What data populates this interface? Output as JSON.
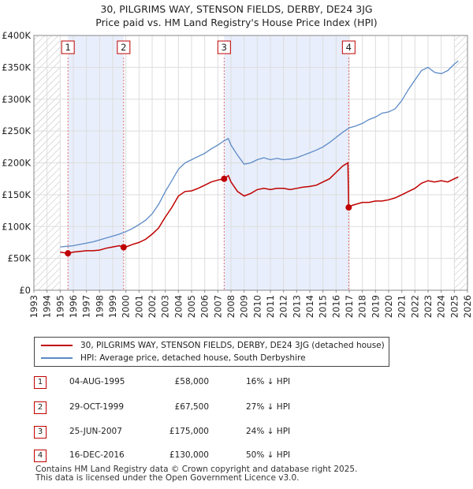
{
  "title_line1": "30, PILGRIMS WAY, STENSON FIELDS, DERBY, DE24 3JG",
  "title_line2": "Price paid vs. HM Land Registry's House Price Index (HPI)",
  "legend": {
    "property_label": "30, PILGRIMS WAY, STENSON FIELDS, DERBY, DE24 3JG (detached house)",
    "hpi_label": "HPI: Average price, detached house, South Derbyshire"
  },
  "colors": {
    "property": "#c00000",
    "hpi": "#5b8ac6",
    "band": "#e8eefb",
    "hatch": "#bbbbbb",
    "marker_line": "#e07070"
  },
  "transactions": [
    {
      "num": "1",
      "date": "04-AUG-1995",
      "price": "£58,000",
      "diff": "16% ↓ HPI"
    },
    {
      "num": "2",
      "date": "29-OCT-1999",
      "price": "£67,500",
      "diff": "27% ↓ HPI"
    },
    {
      "num": "3",
      "date": "25-JUN-2007",
      "price": "£175,000",
      "diff": "24% ↓ HPI"
    },
    {
      "num": "4",
      "date": "16-DEC-2016",
      "price": "£130,000",
      "diff": "50% ↓ HPI"
    }
  ],
  "footer": {
    "line1": "Contains HM Land Registry data © Crown copyright and database right 2025.",
    "line2": "This data is licensed under the Open Government Licence v3.0."
  },
  "chart_data": {
    "type": "line",
    "title": "Price paid vs. HM Land Registry's House Price Index (HPI)",
    "xlabel": "",
    "ylabel": "",
    "xlim": [
      1993,
      2026
    ],
    "ylim": [
      0,
      400000
    ],
    "grid": true,
    "legend_position": "below",
    "y_ticks": [
      0,
      50000,
      100000,
      150000,
      200000,
      250000,
      300000,
      350000,
      400000
    ],
    "y_tick_labels": [
      "£0",
      "£50K",
      "£100K",
      "£150K",
      "£200K",
      "£250K",
      "£300K",
      "£350K",
      "£400K"
    ],
    "x_ticks": [
      "1993",
      "1994",
      "1995",
      "1996",
      "1997",
      "1998",
      "1999",
      "2000",
      "2001",
      "2002",
      "2003",
      "2004",
      "2005",
      "2006",
      "2007",
      "2008",
      "2009",
      "2010",
      "2011",
      "2012",
      "2013",
      "2014",
      "2015",
      "2016",
      "2017",
      "2018",
      "2019",
      "2020",
      "2021",
      "2022",
      "2023",
      "2024",
      "2025",
      "2026"
    ],
    "hatch_before": 1995.0,
    "hatch_after": 2025.0,
    "sale_markers": [
      {
        "label": "1",
        "x": 1995.59,
        "y": 58000
      },
      {
        "label": "2",
        "x": 1999.83,
        "y": 67500
      },
      {
        "label": "3",
        "x": 2007.48,
        "y": 175000
      },
      {
        "label": "4",
        "x": 2016.96,
        "y": 130000
      }
    ],
    "series": [
      {
        "name": "30, PILGRIMS WAY, STENSON FIELDS, DERBY, DE24 3JG (detached house)",
        "x": [
          1995.0,
          1995.59,
          1996.0,
          1996.5,
          1997.0,
          1997.5,
          1998.0,
          1998.5,
          1999.0,
          1999.5,
          1999.83,
          2000.0,
          2000.5,
          2001.0,
          2001.5,
          2002.0,
          2002.5,
          2003.0,
          2003.5,
          2004.0,
          2004.5,
          2005.0,
          2005.5,
          2006.0,
          2006.5,
          2007.0,
          2007.48,
          2007.8,
          2008.0,
          2008.5,
          2009.0,
          2009.5,
          2010.0,
          2010.5,
          2011.0,
          2011.5,
          2012.0,
          2012.5,
          2013.0,
          2013.5,
          2014.0,
          2014.5,
          2015.0,
          2015.5,
          2016.0,
          2016.5,
          2016.9,
          2016.96,
          2017.2,
          2017.5,
          2018.0,
          2018.5,
          2019.0,
          2019.5,
          2020.0,
          2020.5,
          2021.0,
          2021.5,
          2022.0,
          2022.5,
          2023.0,
          2023.5,
          2024.0,
          2024.5,
          2025.0,
          2025.3
        ],
        "values": [
          60000,
          58000,
          60000,
          61000,
          62000,
          62000,
          63000,
          66000,
          68000,
          70000,
          67500,
          68000,
          72000,
          75000,
          80000,
          88000,
          98000,
          115000,
          130000,
          148000,
          155000,
          156000,
          160000,
          165000,
          170000,
          173000,
          175000,
          180000,
          170000,
          155000,
          148000,
          152000,
          158000,
          160000,
          158000,
          160000,
          160000,
          158000,
          160000,
          162000,
          163000,
          165000,
          170000,
          175000,
          185000,
          195000,
          200000,
          130000,
          133000,
          135000,
          138000,
          138000,
          140000,
          140000,
          142000,
          145000,
          150000,
          155000,
          160000,
          168000,
          172000,
          170000,
          172000,
          170000,
          175000,
          178000
        ]
      },
      {
        "name": "HPI: Average price, detached house, South Derbyshire",
        "x": [
          1995.0,
          1995.5,
          1996.0,
          1996.5,
          1997.0,
          1997.5,
          1998.0,
          1998.5,
          1999.0,
          1999.5,
          2000.0,
          2000.5,
          2001.0,
          2001.5,
          2002.0,
          2002.5,
          2003.0,
          2003.5,
          2004.0,
          2004.5,
          2005.0,
          2005.5,
          2006.0,
          2006.5,
          2007.0,
          2007.5,
          2007.8,
          2008.0,
          2008.5,
          2009.0,
          2009.5,
          2010.0,
          2010.5,
          2011.0,
          2011.5,
          2012.0,
          2012.5,
          2013.0,
          2013.5,
          2014.0,
          2014.5,
          2015.0,
          2015.5,
          2016.0,
          2016.5,
          2017.0,
          2017.5,
          2018.0,
          2018.5,
          2019.0,
          2019.5,
          2020.0,
          2020.5,
          2021.0,
          2021.5,
          2022.0,
          2022.5,
          2023.0,
          2023.5,
          2024.0,
          2024.5,
          2025.0,
          2025.3
        ],
        "values": [
          68000,
          69000,
          70000,
          72000,
          74000,
          76000,
          79000,
          82000,
          85000,
          88000,
          92000,
          97000,
          103000,
          110000,
          120000,
          135000,
          155000,
          172000,
          190000,
          200000,
          205000,
          210000,
          215000,
          222000,
          228000,
          235000,
          238000,
          228000,
          212000,
          198000,
          200000,
          205000,
          208000,
          205000,
          207000,
          205000,
          206000,
          208000,
          212000,
          216000,
          220000,
          225000,
          232000,
          240000,
          248000,
          255000,
          258000,
          262000,
          268000,
          272000,
          278000,
          280000,
          285000,
          298000,
          315000,
          330000,
          345000,
          350000,
          342000,
          340000,
          345000,
          355000,
          360000
        ]
      }
    ]
  }
}
